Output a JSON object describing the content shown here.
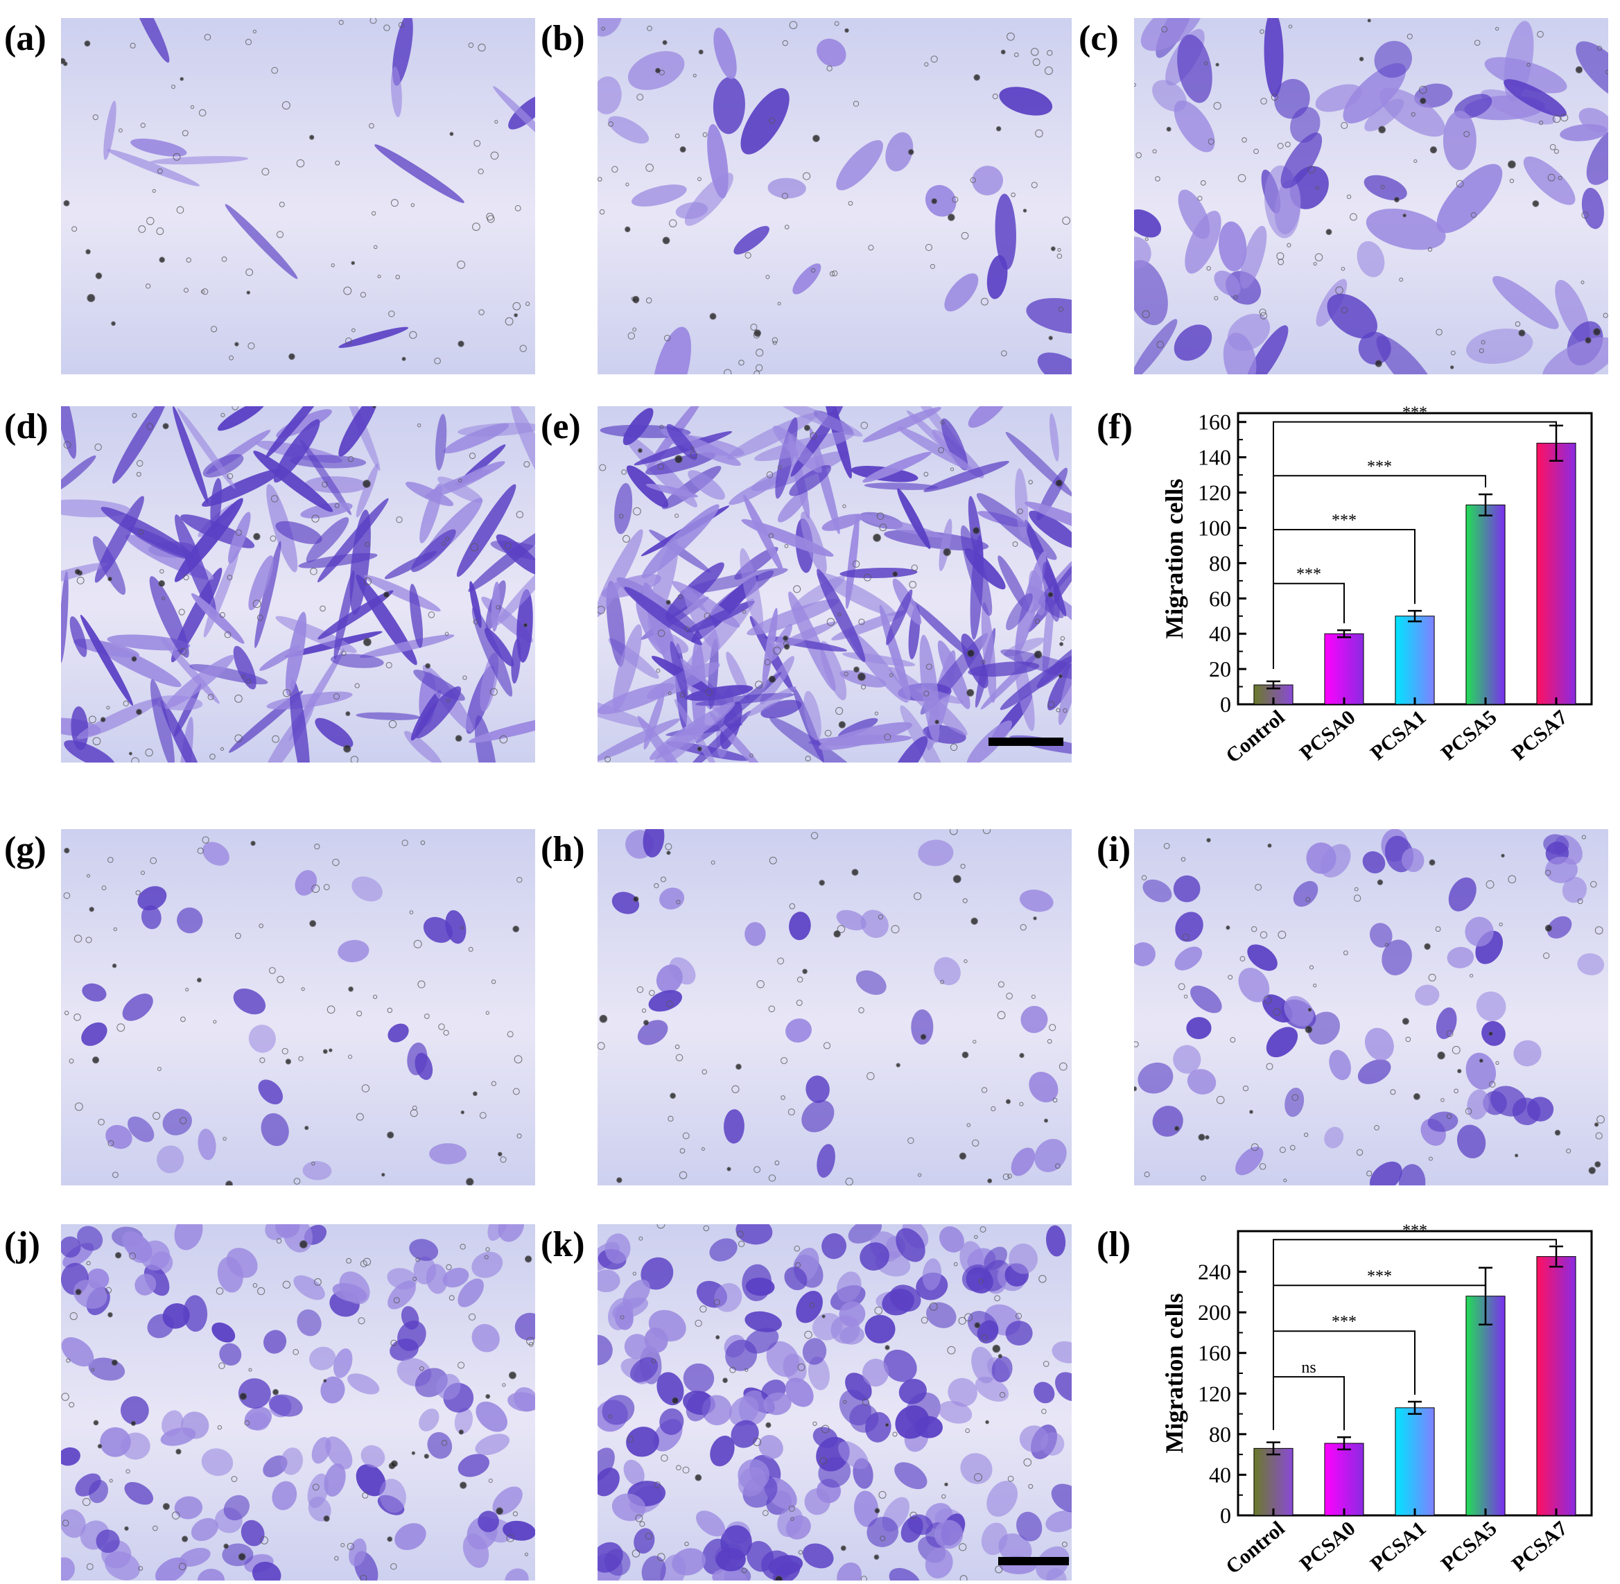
{
  "figure": {
    "labels": [
      "(a)",
      "(b)",
      "(c)",
      "(d)",
      "(e)",
      "(f)",
      "(g)",
      "(h)",
      "(i)",
      "(j)",
      "(k)",
      "(l)"
    ]
  },
  "micrographs": {
    "a": {
      "stain": "crystal-violet",
      "density": "sparse",
      "cell_shape": "spindle"
    },
    "b": {
      "stain": "crystal-violet",
      "density": "low",
      "cell_shape": "spread"
    },
    "c": {
      "stain": "crystal-violet",
      "density": "medium",
      "cell_shape": "spread"
    },
    "d": {
      "stain": "crystal-violet",
      "density": "high",
      "cell_shape": "spindle"
    },
    "e": {
      "stain": "crystal-violet",
      "density": "very-high",
      "cell_shape": "spindle"
    },
    "g": {
      "stain": "crystal-violet",
      "density": "low",
      "cell_shape": "round"
    },
    "h": {
      "stain": "crystal-violet",
      "density": "low",
      "cell_shape": "round"
    },
    "i": {
      "stain": "crystal-violet",
      "density": "medium",
      "cell_shape": "round"
    },
    "j": {
      "stain": "crystal-violet",
      "density": "high",
      "cell_shape": "round"
    },
    "k": {
      "stain": "crystal-violet",
      "density": "very-high",
      "cell_shape": "polygonal"
    }
  },
  "colors": {
    "stain_dark": "#5a3fc4",
    "stain_light": "#9a88e0",
    "background_top": "#cdd0ef",
    "background_mid": "#e8e6f6"
  },
  "chart_data": [
    {
      "panel": "(f)",
      "type": "bar",
      "categories": [
        "Control",
        "PCSA0",
        "PCSA1",
        "PCSA5",
        "PCSA7"
      ],
      "values": [
        11,
        40,
        50,
        113,
        148
      ],
      "errors": [
        2,
        2,
        3,
        6,
        10
      ],
      "ylabel": "Migration cells",
      "xlabel": "",
      "ylim": [
        0,
        165
      ],
      "yticks": [
        0,
        20,
        40,
        60,
        80,
        100,
        120,
        140,
        160
      ],
      "bar_gradients": [
        [
          "#6b7a2a",
          "#8a4ad8"
        ],
        [
          "#ff00ff",
          "#8a2be2"
        ],
        [
          "#00e5ff",
          "#8080ff"
        ],
        [
          "#22dd55",
          "#7b2ef0"
        ],
        [
          "#ff1060",
          "#8a2be2"
        ]
      ],
      "significance": [
        {
          "from": "Control",
          "to": "PCSA7",
          "label": "***"
        },
        {
          "from": "Control",
          "to": "PCSA5",
          "label": "***"
        },
        {
          "from": "Control",
          "to": "PCSA1",
          "label": "***"
        },
        {
          "from": "Control",
          "to": "PCSA0",
          "label": "***"
        }
      ]
    },
    {
      "panel": "(l)",
      "type": "bar",
      "categories": [
        "Control",
        "PCSA0",
        "PCSA1",
        "PCSA5",
        "PCSA7"
      ],
      "values": [
        66,
        71,
        106,
        216,
        255
      ],
      "errors": [
        6,
        6,
        6,
        28,
        10
      ],
      "ylabel": "Migration cells",
      "xlabel": "",
      "ylim": [
        0,
        280
      ],
      "yticks": [
        0,
        40,
        80,
        120,
        160,
        200,
        240
      ],
      "bar_gradients": [
        [
          "#6b7a2a",
          "#8a4ad8"
        ],
        [
          "#ff00ff",
          "#8a2be2"
        ],
        [
          "#00e5ff",
          "#8080ff"
        ],
        [
          "#22dd55",
          "#7b2ef0"
        ],
        [
          "#ff1060",
          "#8a2be2"
        ]
      ],
      "significance": [
        {
          "from": "Control",
          "to": "PCSA7",
          "label": "***"
        },
        {
          "from": "Control",
          "to": "PCSA5",
          "label": "***"
        },
        {
          "from": "Control",
          "to": "PCSA1",
          "label": "***"
        },
        {
          "from": "Control",
          "to": "PCSA0",
          "label": "ns"
        }
      ]
    }
  ]
}
